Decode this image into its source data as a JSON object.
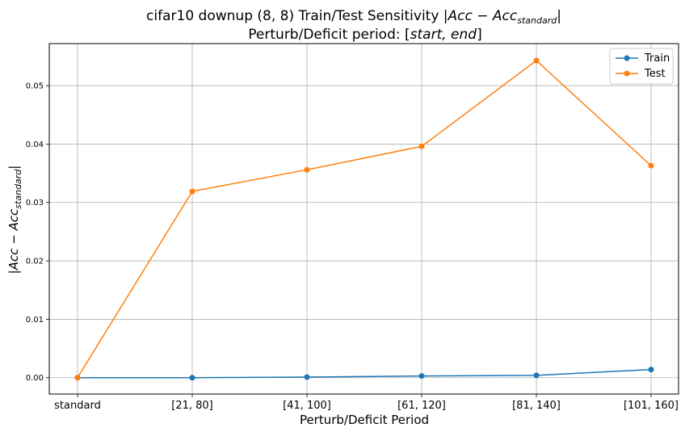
{
  "chart_data": {
    "type": "line",
    "title": {
      "line1_prefix": "cifar10 downup (8, 8) Train/Test Sensitivity |",
      "line1_math": "Acc − Acc",
      "line1_sub": "standard",
      "line1_suffix": "|",
      "line2_prefix": "Perturb/Deficit period: [",
      "line2_math": "start, end",
      "line2_suffix": "]"
    },
    "xlabel": "Perturb/Deficit Period",
    "ylabel": {
      "prefix": "|",
      "math": "Acc − Acc",
      "sub": "standard",
      "suffix": "|"
    },
    "categories": [
      "standard",
      "[21, 80]",
      "[41, 100]",
      "[61, 120]",
      "[81, 140]",
      "[101, 160]"
    ],
    "yticks": [
      "0.00",
      "0.01",
      "0.02",
      "0.03",
      "0.04",
      "0.05"
    ],
    "ylim": [
      -0.0028,
      0.0572
    ],
    "grid": true,
    "legend_position": "top-right",
    "series": [
      {
        "name": "Train",
        "color": "#1f77b4",
        "values": [
          0.0,
          0.0,
          0.0001,
          0.0003,
          0.0004,
          0.0014
        ]
      },
      {
        "name": "Test",
        "color": "#ff7f0e",
        "values": [
          0.0,
          0.0319,
          0.0356,
          0.0396,
          0.0543,
          0.0363
        ]
      }
    ]
  }
}
